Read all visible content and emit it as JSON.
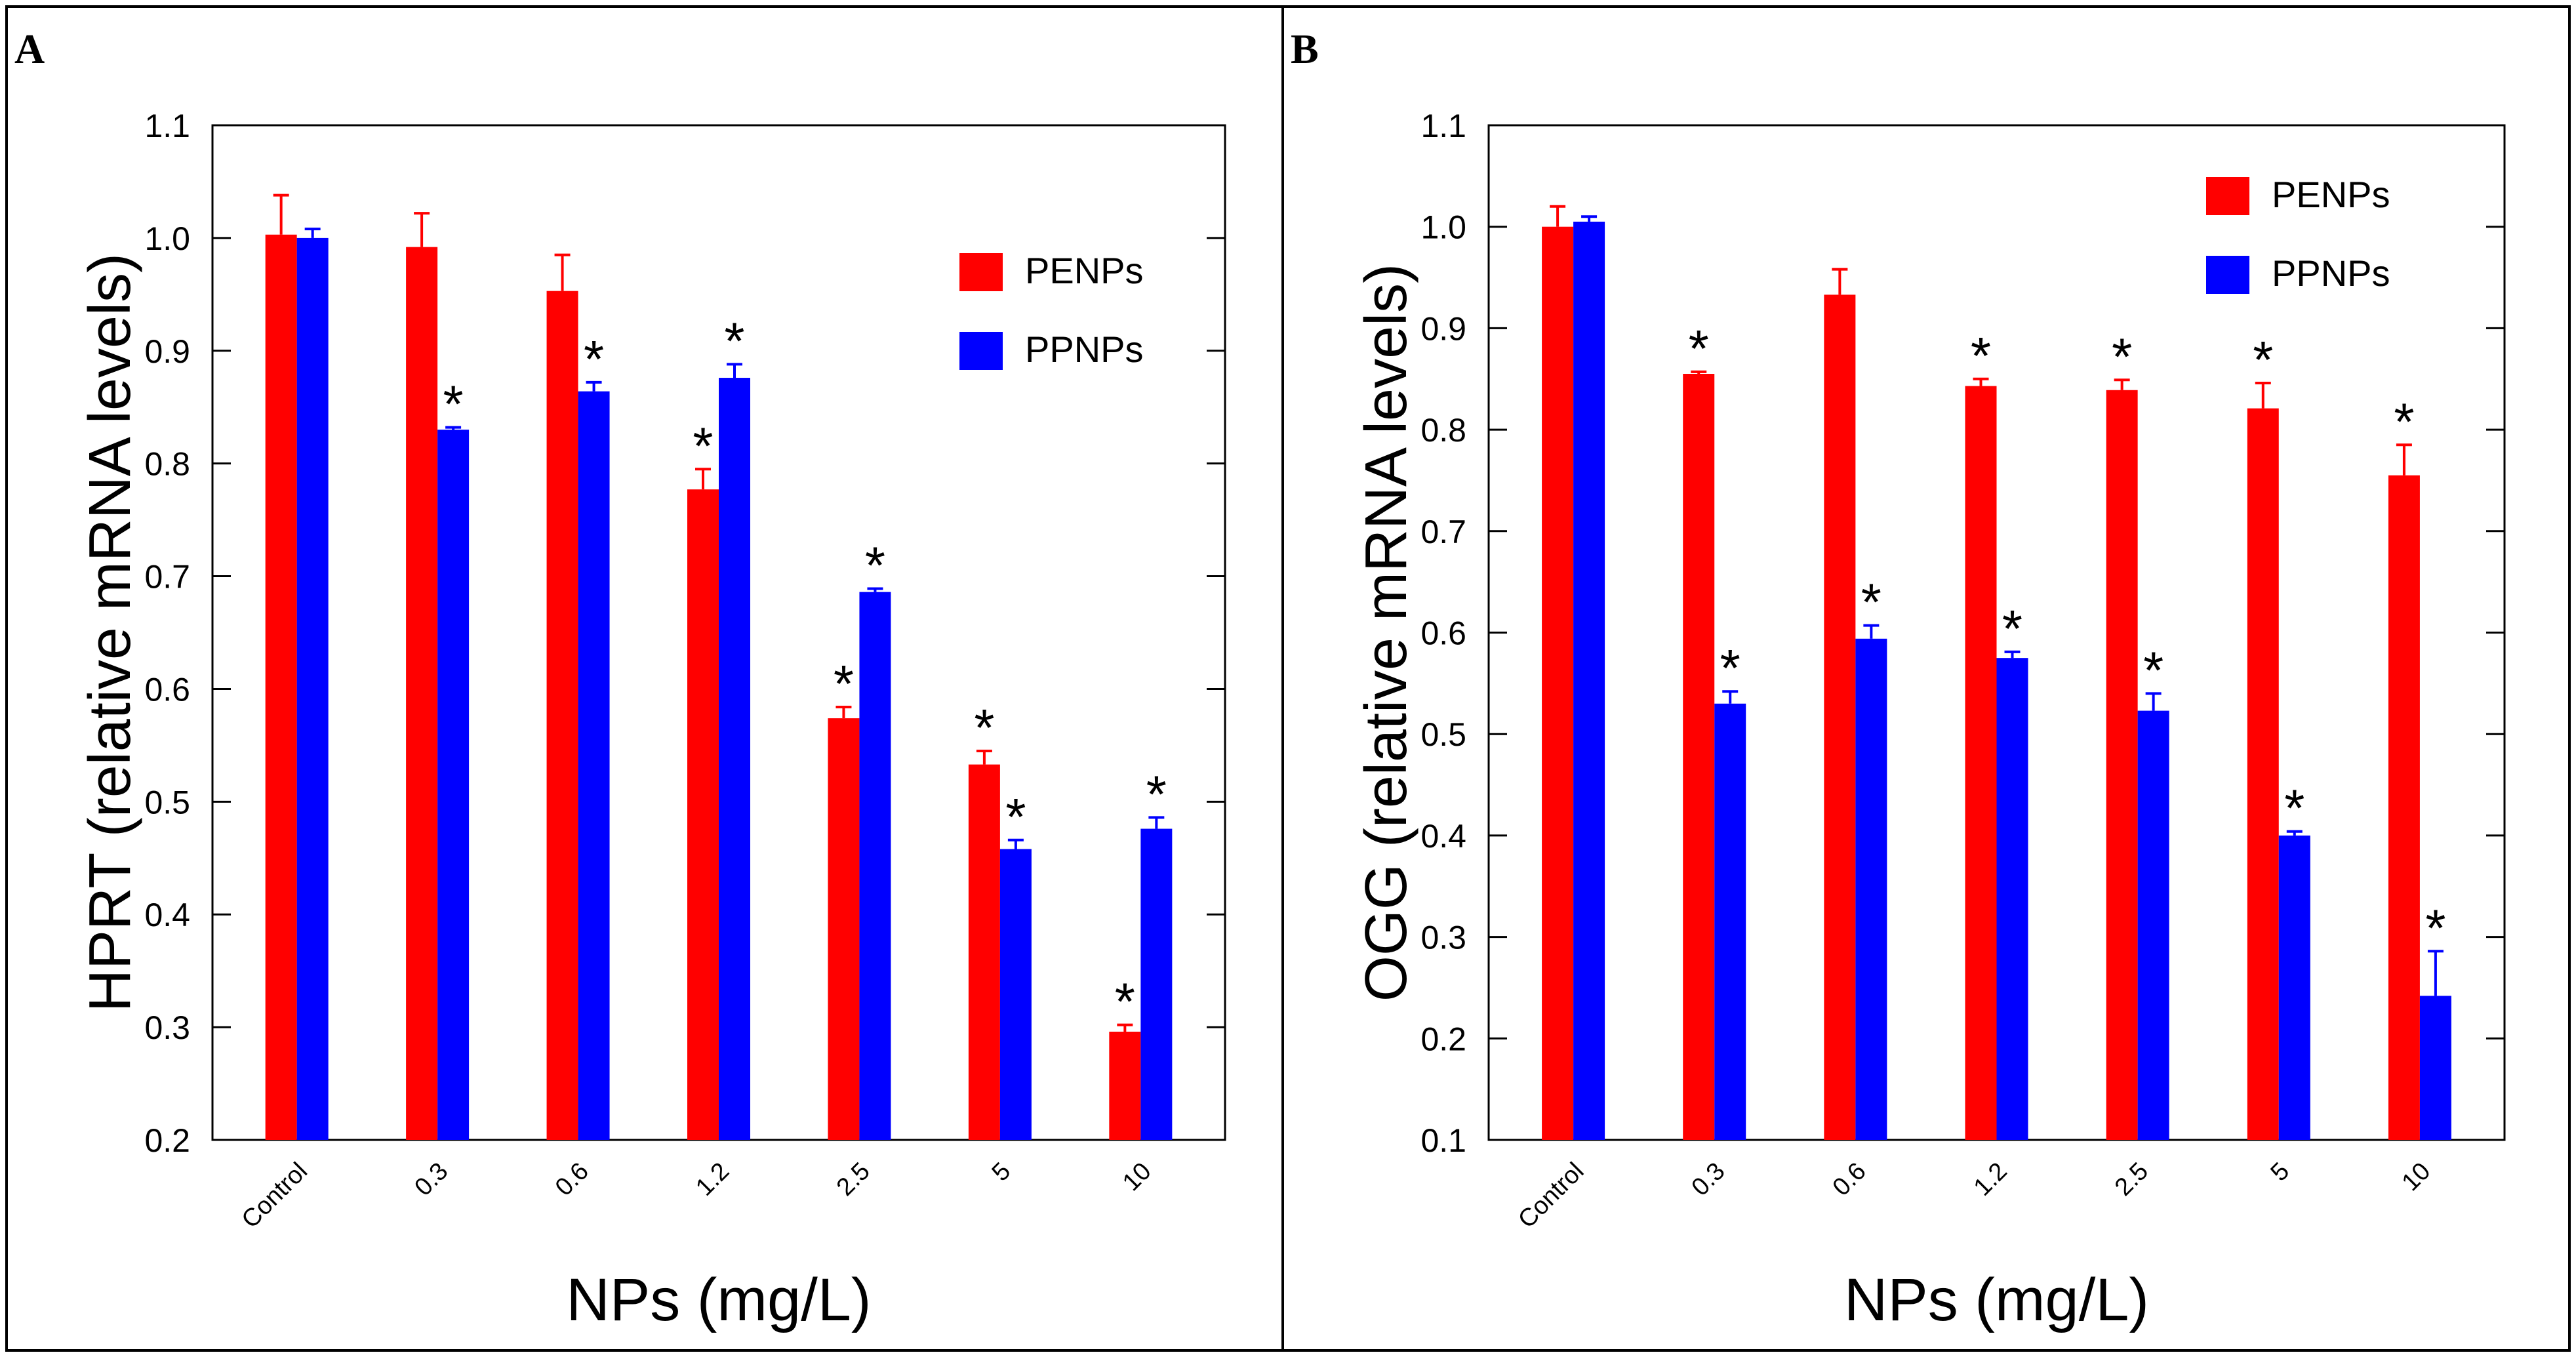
{
  "figure": {
    "panels": [
      {
        "letter": "A"
      },
      {
        "letter": "B"
      }
    ]
  },
  "colors": {
    "penps": "#ff0000",
    "ppnps": "#0000ff",
    "axis": "#000000",
    "background": "#ffffff"
  },
  "chart_data": [
    {
      "type": "bar",
      "panel": "A",
      "title": "",
      "xlabel": "NPs (mg/L)",
      "ylabel": "HPRT (relative mRNA levels)",
      "categories": [
        "Control",
        "0.3",
        "0.6",
        "1.2",
        "2.5",
        "5",
        "10"
      ],
      "ylim": [
        0.2,
        1.1
      ],
      "yticks": [
        "0.2",
        "0.3",
        "0.4",
        "0.5",
        "0.6",
        "0.7",
        "0.8",
        "0.9",
        "1.0",
        "1.1"
      ],
      "legend": "top-right",
      "series": [
        {
          "name": "PENPs",
          "color": "#ff0000",
          "values": [
            1.003,
            0.992,
            0.953,
            0.777,
            0.574,
            0.533,
            0.296
          ],
          "errors": [
            0.035,
            0.03,
            0.032,
            0.018,
            0.01,
            0.012,
            0.006
          ],
          "significant": [
            false,
            false,
            false,
            true,
            true,
            true,
            true
          ]
        },
        {
          "name": "PPNPs",
          "color": "#0000ff",
          "values": [
            1.0,
            0.83,
            0.864,
            0.876,
            0.686,
            0.458,
            0.476
          ],
          "errors": [
            0.008,
            0.002,
            0.008,
            0.012,
            0.003,
            0.008,
            0.01
          ],
          "significant": [
            false,
            true,
            true,
            true,
            true,
            true,
            true
          ]
        }
      ],
      "annotation_symbol": "*"
    },
    {
      "type": "bar",
      "panel": "B",
      "title": "",
      "xlabel": "NPs (mg/L)",
      "ylabel": "OGG (relative mRNA levels)",
      "categories": [
        "Control",
        "0.3",
        "0.6",
        "1.2",
        "2.5",
        "5",
        "10"
      ],
      "ylim": [
        0.1,
        1.1
      ],
      "yticks": [
        "0.1",
        "0.2",
        "0.3",
        "0.4",
        "0.5",
        "0.6",
        "0.7",
        "0.8",
        "0.9",
        "1.0",
        "1.1"
      ],
      "legend": "top-right",
      "series": [
        {
          "name": "PENPs",
          "color": "#ff0000",
          "values": [
            1.0,
            0.855,
            0.933,
            0.843,
            0.839,
            0.821,
            0.755
          ],
          "errors": [
            0.02,
            0.002,
            0.025,
            0.007,
            0.01,
            0.025,
            0.03
          ],
          "significant": [
            false,
            true,
            false,
            true,
            true,
            true,
            true
          ]
        },
        {
          "name": "PPNPs",
          "color": "#0000ff",
          "values": [
            1.005,
            0.53,
            0.594,
            0.575,
            0.523,
            0.4,
            0.242
          ],
          "errors": [
            0.005,
            0.012,
            0.013,
            0.006,
            0.017,
            0.004,
            0.044
          ],
          "significant": [
            false,
            true,
            true,
            true,
            true,
            true,
            true
          ]
        }
      ],
      "annotation_symbol": "*"
    }
  ]
}
